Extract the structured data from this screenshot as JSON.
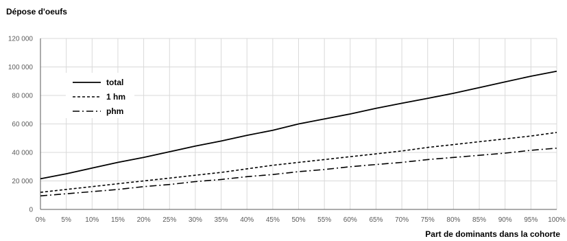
{
  "chart_data": {
    "type": "line",
    "title": "",
    "ylabel": "Dépose d'oeufs",
    "xlabel": "Part de dominants  dans la cohorte",
    "categories": [
      "0%",
      "5%",
      "10%",
      "15%",
      "20%",
      "25%",
      "30%",
      "35%",
      "40%",
      "45%",
      "50%",
      "55%",
      "60%",
      "65%",
      "70%",
      "75%",
      "80%",
      "85%",
      "90%",
      "95%",
      "100%"
    ],
    "y_tick_labels": [
      "0",
      "20 000",
      "40 000",
      "60 000",
      "80 000",
      "100 000",
      "120 000"
    ],
    "ylim": [
      0,
      120000
    ],
    "grid": true,
    "legend_position": "upper-left-inside",
    "series": [
      {
        "name": "total",
        "style": "solid",
        "values": [
          21500,
          25000,
          29000,
          33000,
          36500,
          40500,
          44500,
          48000,
          52000,
          55500,
          60000,
          63500,
          67000,
          71000,
          74500,
          78000,
          81500,
          85500,
          89500,
          93500,
          97000
        ]
      },
      {
        "name": "1 hm",
        "style": "dashed",
        "values": [
          12000,
          14000,
          16000,
          18000,
          20000,
          22000,
          24000,
          26000,
          28500,
          31000,
          33000,
          35000,
          37000,
          39000,
          41000,
          43500,
          45500,
          47500,
          49500,
          51500,
          54000
        ]
      },
      {
        "name": "phm",
        "style": "dashdot",
        "values": [
          9500,
          11000,
          12500,
          14000,
          16000,
          17500,
          19500,
          21000,
          23000,
          24500,
          26500,
          28000,
          30000,
          31500,
          33000,
          35000,
          36500,
          38000,
          39500,
          41500,
          43000
        ]
      }
    ]
  }
}
